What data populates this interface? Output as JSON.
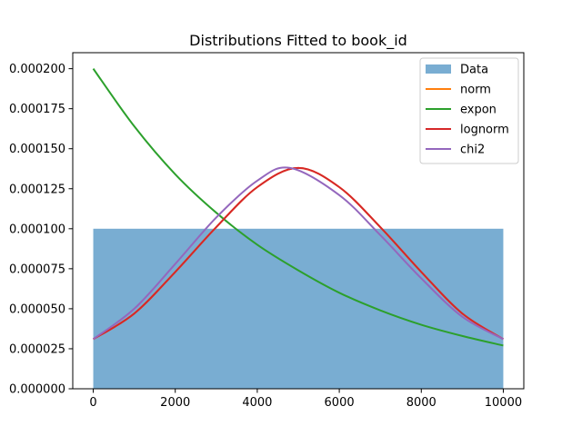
{
  "chart_data": {
    "type": "line",
    "title": "Distributions Fitted to book_id",
    "xlabel": "",
    "ylabel": "",
    "xlim": [
      -500,
      10500
    ],
    "ylim": [
      0,
      0.00021
    ],
    "x_ticks": [
      0,
      2000,
      4000,
      6000,
      8000,
      10000
    ],
    "x_tick_labels": [
      "0",
      "2000",
      "4000",
      "6000",
      "8000",
      "10000"
    ],
    "y_ticks": [
      0,
      2.5e-05,
      5e-05,
      7.5e-05,
      0.0001,
      0.000125,
      0.00015,
      0.000175,
      0.0002
    ],
    "y_tick_labels": [
      "0.000000",
      "0.000025",
      "0.000050",
      "0.000075",
      "0.000100",
      "0.000125",
      "0.000150",
      "0.000175",
      "0.000200"
    ],
    "grid": false,
    "legend_position": "top-right",
    "histogram": {
      "name": "Data",
      "color": "#1f77b4",
      "opacity": 0.6,
      "bins": [
        {
          "start": 0,
          "end": 10000,
          "density": 0.0001
        }
      ]
    },
    "series": [
      {
        "name": "norm",
        "color": "#ff7f0e",
        "x": [
          0,
          1000,
          2000,
          3000,
          4000,
          5000,
          6000,
          7000,
          8000,
          9000,
          10000
        ],
        "y": [
          3.1e-05,
          4.7e-05,
          7.3e-05,
          0.000101,
          0.000126,
          0.000138,
          0.000126,
          0.000101,
          7.3e-05,
          4.7e-05,
          3.1e-05
        ]
      },
      {
        "name": "expon",
        "color": "#2ca02c",
        "x": [
          0,
          1000,
          2000,
          3000,
          4000,
          5000,
          6000,
          7000,
          8000,
          9000,
          10000
        ],
        "y": [
          0.0002,
          0.000164,
          0.000134,
          0.00011,
          9e-05,
          7.4e-05,
          6e-05,
          4.9e-05,
          4e-05,
          3.3e-05,
          2.7e-05
        ]
      },
      {
        "name": "lognorm",
        "color": "#d62728",
        "x": [
          0,
          1000,
          2000,
          3000,
          4000,
          5000,
          6000,
          7000,
          8000,
          9000,
          10000
        ],
        "y": [
          3.1e-05,
          4.7e-05,
          7.3e-05,
          0.000101,
          0.000126,
          0.000138,
          0.000126,
          0.000101,
          7.3e-05,
          4.7e-05,
          3.1e-05
        ]
      },
      {
        "name": "chi2",
        "color": "#9467bd",
        "x": [
          0,
          1000,
          2000,
          3000,
          4000,
          4800,
          6000,
          7000,
          8000,
          9000,
          10000
        ],
        "y": [
          3.1e-05,
          5e-05,
          7.8e-05,
          0.000107,
          0.00013,
          0.000138,
          0.000121,
          9.6e-05,
          6.9e-05,
          4.5e-05,
          3.1e-05
        ]
      }
    ]
  }
}
